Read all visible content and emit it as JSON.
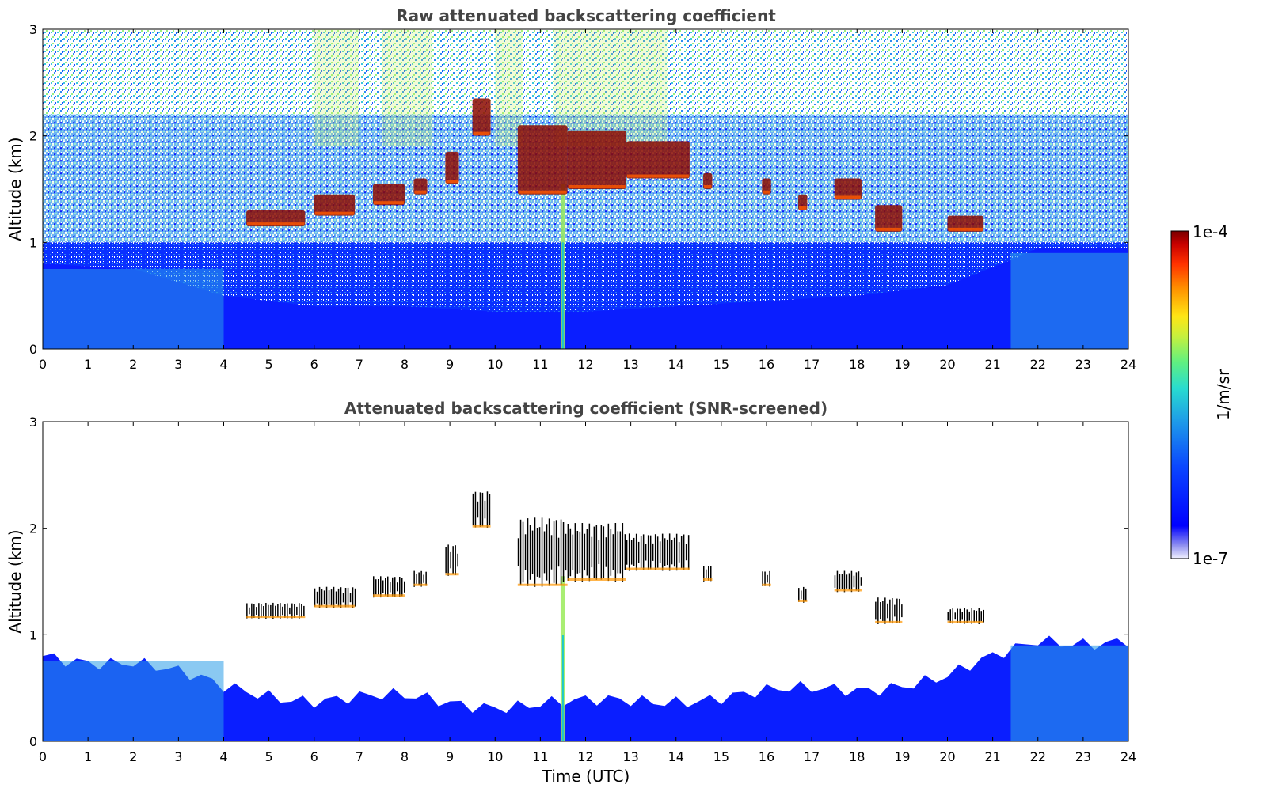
{
  "chart_data": [
    {
      "type": "heatmap",
      "title": "Raw attenuated backscattering coefficient",
      "xlabel": "",
      "ylabel": "Altitude (km)",
      "xlim": [
        0,
        24
      ],
      "ylim": [
        0,
        3
      ],
      "x_ticks": [
        "0",
        "1",
        "2",
        "3",
        "4",
        "5",
        "6",
        "7",
        "8",
        "9",
        "10",
        "11",
        "12",
        "13",
        "14",
        "15",
        "16",
        "17",
        "18",
        "19",
        "20",
        "21",
        "22",
        "23",
        "24"
      ],
      "y_ticks": [
        "0",
        "1",
        "2",
        "3"
      ],
      "layers": {
        "boundary_layer_top_km": [
          [
            0,
            0.8
          ],
          [
            2,
            0.75
          ],
          [
            4,
            0.5
          ],
          [
            6,
            0.4
          ],
          [
            8,
            0.4
          ],
          [
            10,
            0.35
          ],
          [
            12,
            0.35
          ],
          [
            14,
            0.4
          ],
          [
            16,
            0.45
          ],
          [
            18,
            0.5
          ],
          [
            20,
            0.6
          ],
          [
            21.5,
            0.85
          ],
          [
            22,
            0.95
          ],
          [
            24,
            0.95
          ]
        ],
        "cloud_segments": [
          {
            "t": [
              4.5,
              5.8
            ],
            "alt_km": [
              1.15,
              1.3
            ]
          },
          {
            "t": [
              6.0,
              6.9
            ],
            "alt_km": [
              1.25,
              1.45
            ]
          },
          {
            "t": [
              7.3,
              8.0
            ],
            "alt_km": [
              1.35,
              1.55
            ]
          },
          {
            "t": [
              8.2,
              8.5
            ],
            "alt_km": [
              1.45,
              1.6
            ]
          },
          {
            "t": [
              8.9,
              9.2
            ],
            "alt_km": [
              1.55,
              1.85
            ]
          },
          {
            "t": [
              9.5,
              9.9
            ],
            "alt_km": [
              2.0,
              2.35
            ]
          },
          {
            "t": [
              10.5,
              11.6
            ],
            "alt_km": [
              1.45,
              2.1
            ]
          },
          {
            "t": [
              11.6,
              12.9
            ],
            "alt_km": [
              1.5,
              2.05
            ]
          },
          {
            "t": [
              12.9,
              14.3
            ],
            "alt_km": [
              1.6,
              1.95
            ]
          },
          {
            "t": [
              14.6,
              14.8
            ],
            "alt_km": [
              1.5,
              1.65
            ]
          },
          {
            "t": [
              15.9,
              16.1
            ],
            "alt_km": [
              1.45,
              1.6
            ]
          },
          {
            "t": [
              16.7,
              16.9
            ],
            "alt_km": [
              1.3,
              1.45
            ]
          },
          {
            "t": [
              17.5,
              18.1
            ],
            "alt_km": [
              1.4,
              1.6
            ]
          },
          {
            "t": [
              18.4,
              19.0
            ],
            "alt_km": [
              1.1,
              1.35
            ]
          },
          {
            "t": [
              20.0,
              20.8
            ],
            "alt_km": [
              1.1,
              1.25
            ]
          }
        ],
        "precip_streak_t": 11.5
      }
    },
    {
      "type": "heatmap",
      "title": "Attenuated backscattering coefficient (SNR-screened)",
      "xlabel": "Time (UTC)",
      "ylabel": "Altitude (km)",
      "xlim": [
        0,
        24
      ],
      "ylim": [
        0,
        3
      ],
      "x_ticks": [
        "0",
        "1",
        "2",
        "3",
        "4",
        "5",
        "6",
        "7",
        "8",
        "9",
        "10",
        "11",
        "12",
        "13",
        "14",
        "15",
        "16",
        "17",
        "18",
        "19",
        "20",
        "21",
        "22",
        "23",
        "24"
      ],
      "y_ticks": [
        "0",
        "1",
        "2",
        "3"
      ],
      "screening": "SNR"
    }
  ],
  "colorbar": {
    "label": "1/m/sr",
    "max_label": "1e-4",
    "min_label": "1e-7",
    "scale": "log",
    "range": [
      1e-07,
      0.0001
    ],
    "colormap": [
      "#f0f0ff",
      "#c8c8f5",
      "#8c8cf0",
      "#0000ff",
      "#0000ff",
      "#0a3cff",
      "#1e78f0",
      "#1eb4e6",
      "#28e1c8",
      "#78f078",
      "#c8f03c",
      "#ffe614",
      "#ff9600",
      "#ff3200",
      "#c80000",
      "#780000"
    ]
  }
}
